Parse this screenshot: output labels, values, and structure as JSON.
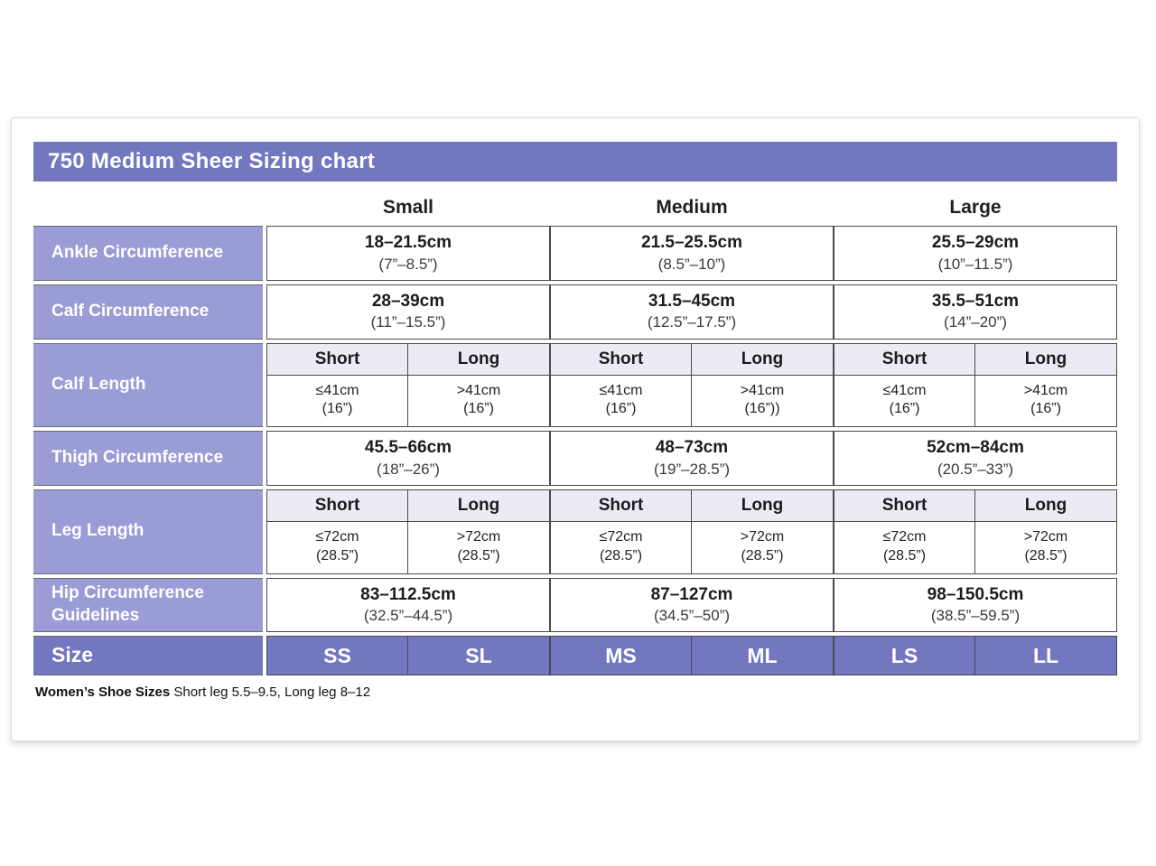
{
  "title": "750 Medium Sheer Sizing chart",
  "colors": {
    "title_bg": "#7377c0",
    "row_label_bg": "#9a9cd6",
    "subheader_bg": "#ebebf5",
    "size_row_bg": "#7377c0",
    "border": "#4a4a4a"
  },
  "columns": [
    "Small",
    "Medium",
    "Large"
  ],
  "rows": {
    "ankle": {
      "label": "Ankle Circumference",
      "cells": [
        {
          "main": "18–21.5cm",
          "sub": "(7”–8.5”)"
        },
        {
          "main": "21.5–25.5cm",
          "sub": "(8.5”–10”)"
        },
        {
          "main": "25.5–29cm",
          "sub": "(10”–11.5”)"
        }
      ]
    },
    "calf_circumference": {
      "label": "Calf Circumference",
      "cells": [
        {
          "main": "28–39cm",
          "sub": "(11”–15.5”)"
        },
        {
          "main": "31.5–45cm",
          "sub": "(12.5”–17.5”)"
        },
        {
          "main": "35.5–51cm",
          "sub": "(14”–20”)"
        }
      ]
    },
    "calf_length": {
      "label": "Calf Length",
      "subheaders": [
        "Short",
        "Long",
        "Short",
        "Long",
        "Short",
        "Long"
      ],
      "cells": [
        {
          "main": "≤41cm",
          "sub": "(16”)"
        },
        {
          "main": ">41cm",
          "sub": "(16”)"
        },
        {
          "main": "≤41cm",
          "sub": "(16”)"
        },
        {
          "main": ">41cm",
          "sub": "(16”))"
        },
        {
          "main": "≤41cm",
          "sub": "(16”)"
        },
        {
          "main": ">41cm",
          "sub": "(16”)"
        }
      ]
    },
    "thigh": {
      "label": "Thigh Circumference",
      "cells": [
        {
          "main": "45.5–66cm",
          "sub": "(18”–26”)"
        },
        {
          "main": "48–73cm",
          "sub": "(19”–28.5”)"
        },
        {
          "main": "52cm–84cm",
          "sub": "(20.5”–33”)"
        }
      ]
    },
    "leg_length": {
      "label": "Leg Length",
      "subheaders": [
        "Short",
        "Long",
        "Short",
        "Long",
        "Short",
        "Long"
      ],
      "cells": [
        {
          "main": "≤72cm",
          "sub": "(28.5”)"
        },
        {
          "main": ">72cm",
          "sub": "(28.5”)"
        },
        {
          "main": "≤72cm",
          "sub": "(28.5”)"
        },
        {
          "main": ">72cm",
          "sub": "(28.5”)"
        },
        {
          "main": "≤72cm",
          "sub": "(28.5”)"
        },
        {
          "main": ">72cm",
          "sub": "(28.5”)"
        }
      ]
    },
    "hip": {
      "label": "Hip Circumference Guidelines",
      "cells": [
        {
          "main": "83–112.5cm",
          "sub": "(32.5”–44.5”)"
        },
        {
          "main": "87–127cm",
          "sub": "(34.5”–50”)"
        },
        {
          "main": "98–150.5cm",
          "sub": "(38.5”–59.5”)"
        }
      ]
    },
    "size": {
      "label": "Size",
      "cells": [
        "SS",
        "SL",
        "MS",
        "ML",
        "LS",
        "LL"
      ]
    }
  },
  "footnote": {
    "bold": "Women’s Shoe Sizes",
    "rest": " Short leg 5.5–9.5, Long leg 8–12"
  }
}
